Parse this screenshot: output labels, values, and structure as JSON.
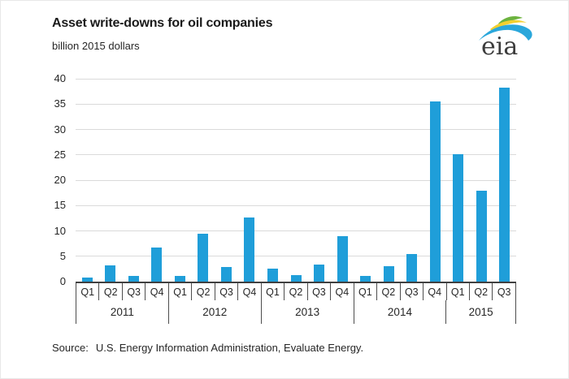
{
  "logo": {
    "text": "eia"
  },
  "source": {
    "prefix": "Source:",
    "text": "U.S. Energy Information Administration, Evaluate Energy."
  },
  "chart_data": {
    "type": "bar",
    "title": "Asset write-downs for oil companies",
    "units_label": "billion 2015 dollars",
    "groups": [
      {
        "year": "2011",
        "quarters": [
          "Q1",
          "Q2",
          "Q3",
          "Q4"
        ]
      },
      {
        "year": "2012",
        "quarters": [
          "Q1",
          "Q2",
          "Q3",
          "Q4"
        ]
      },
      {
        "year": "2013",
        "quarters": [
          "Q1",
          "Q2",
          "Q3",
          "Q4"
        ]
      },
      {
        "year": "2014",
        "quarters": [
          "Q1",
          "Q2",
          "Q3",
          "Q4"
        ]
      },
      {
        "year": "2015",
        "quarters": [
          "Q1",
          "Q2",
          "Q3"
        ]
      }
    ],
    "series": [
      {
        "name": "Asset write-downs",
        "values": [
          0.8,
          3.2,
          1.1,
          6.8,
          1.2,
          9.4,
          2.9,
          12.6,
          2.6,
          1.3,
          3.4,
          9.0,
          1.2,
          3.0,
          5.4,
          35.6,
          25.2,
          18.0,
          38.2
        ]
      }
    ],
    "ylim": [
      0,
      40
    ],
    "yticks": [
      0,
      5,
      10,
      15,
      20,
      25,
      30,
      35,
      40
    ],
    "grid": true,
    "legend_position": "none",
    "bar_color": "#1f9ed9",
    "logo_colors": {
      "green": "#6cb33f",
      "yellow": "#f3d02f",
      "blue": "#2aa7db"
    }
  }
}
